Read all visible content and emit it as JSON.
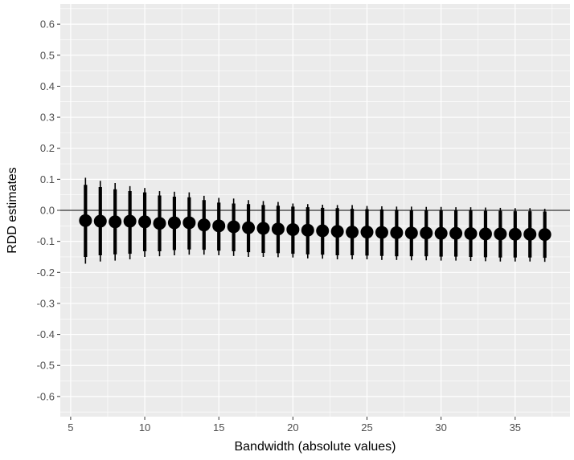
{
  "chart_data": {
    "type": "scatter",
    "title": "",
    "xlabel": "Bandwidth (absolute values)",
    "ylabel": "RDD estimates",
    "xlim": [
      4.3,
      38.7
    ],
    "ylim": [
      -0.665,
      0.665
    ],
    "x_ticks": [
      5,
      10,
      15,
      20,
      25,
      30,
      35
    ],
    "y_ticks": [
      -0.6,
      -0.5,
      -0.4,
      -0.3,
      -0.2,
      -0.1,
      0.0,
      0.1,
      0.2,
      0.3,
      0.4,
      0.5,
      0.6
    ],
    "x_tick_labels": [
      "5",
      "10",
      "15",
      "20",
      "25",
      "30",
      "35"
    ],
    "y_tick_labels": [
      "-0.6",
      "-0.5",
      "-0.4",
      "-0.3",
      "-0.2",
      "-0.1",
      "0.0",
      "0.1",
      "0.2",
      "0.3",
      "0.4",
      "0.5",
      "0.6"
    ],
    "reference_line_y": 0,
    "grid": true,
    "legend": "none",
    "colors": {
      "panel": "#ebebeb",
      "grid": "#ffffff",
      "point": "#000000"
    },
    "series": [
      {
        "x": [
          6,
          7,
          8,
          9,
          10,
          11,
          12,
          13,
          14,
          15,
          16,
          17,
          18,
          19,
          20,
          21,
          22,
          23,
          24,
          25,
          26,
          27,
          28,
          29,
          30,
          31,
          32,
          33,
          34,
          35,
          36,
          37
        ],
        "y": [
          -0.033,
          -0.035,
          -0.037,
          -0.035,
          -0.037,
          -0.042,
          -0.04,
          -0.04,
          -0.047,
          -0.05,
          -0.053,
          -0.056,
          -0.058,
          -0.06,
          -0.062,
          -0.064,
          -0.066,
          -0.068,
          -0.07,
          -0.07,
          -0.071,
          -0.072,
          -0.073,
          -0.073,
          -0.074,
          -0.074,
          -0.075,
          -0.076,
          -0.076,
          -0.077,
          -0.077,
          -0.078
        ],
        "ci95_low": [
          -0.172,
          -0.165,
          -0.162,
          -0.158,
          -0.15,
          -0.148,
          -0.145,
          -0.143,
          -0.143,
          -0.145,
          -0.147,
          -0.15,
          -0.15,
          -0.151,
          -0.152,
          -0.155,
          -0.156,
          -0.158,
          -0.158,
          -0.158,
          -0.16,
          -0.16,
          -0.161,
          -0.161,
          -0.162,
          -0.162,
          -0.163,
          -0.164,
          -0.165,
          -0.165,
          -0.165,
          -0.166
        ],
        "ci95_high": [
          0.105,
          0.095,
          0.088,
          0.078,
          0.072,
          0.062,
          0.06,
          0.058,
          0.047,
          0.04,
          0.038,
          0.033,
          0.03,
          0.027,
          0.022,
          0.02,
          0.018,
          0.017,
          0.017,
          0.014,
          0.013,
          0.012,
          0.012,
          0.011,
          0.011,
          0.01,
          0.01,
          0.009,
          0.008,
          0.007,
          0.007,
          0.005
        ],
        "ci90_low": [
          -0.15,
          -0.145,
          -0.142,
          -0.14,
          -0.132,
          -0.132,
          -0.128,
          -0.126,
          -0.127,
          -0.13,
          -0.132,
          -0.135,
          -0.137,
          -0.138,
          -0.14,
          -0.142,
          -0.143,
          -0.145,
          -0.145,
          -0.146,
          -0.147,
          -0.148,
          -0.148,
          -0.148,
          -0.149,
          -0.149,
          -0.15,
          -0.151,
          -0.152,
          -0.152,
          -0.152,
          -0.153
        ],
        "ci90_high": [
          0.082,
          0.075,
          0.068,
          0.062,
          0.058,
          0.048,
          0.044,
          0.042,
          0.033,
          0.025,
          0.022,
          0.02,
          0.017,
          0.015,
          0.012,
          0.01,
          0.008,
          0.007,
          0.005,
          0.004,
          0.003,
          0.002,
          0.001,
          0.001,
          0.0,
          0.0,
          -0.001,
          -0.002,
          -0.002,
          -0.003,
          -0.003,
          -0.004
        ]
      }
    ]
  }
}
